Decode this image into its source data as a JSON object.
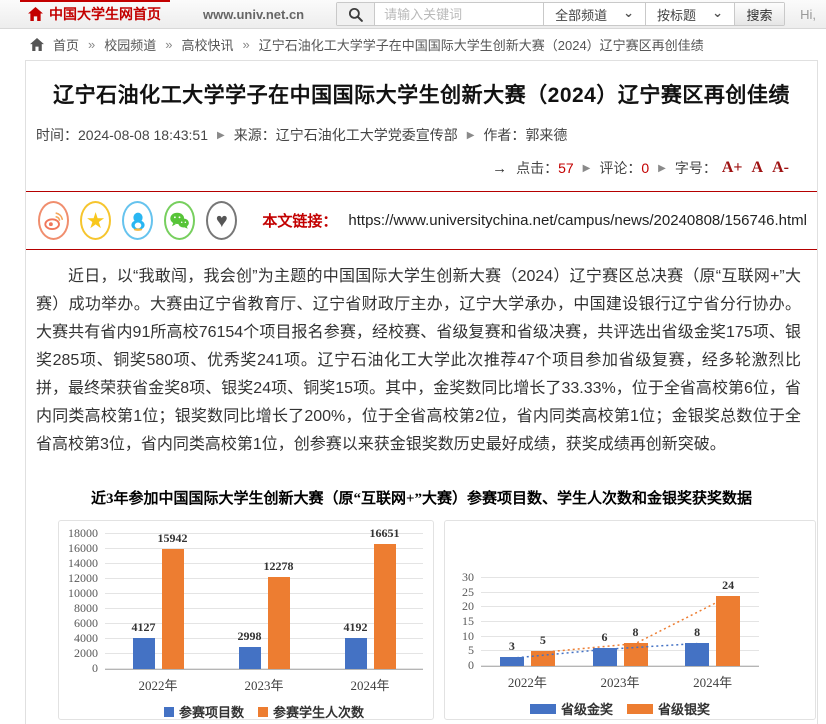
{
  "topbar": {
    "site_home": "中国大学生网首页",
    "site_url": "www.univ.net.cn",
    "search_placeholder": "请输入关键词",
    "channel_select": "全部频道",
    "field_select": "按标题",
    "search_button": "搜索",
    "greeting": "Hi,"
  },
  "breadcrumb": {
    "home": "首页",
    "separator": "»",
    "item1": "校园频道",
    "item2": "高校快讯",
    "item3": "辽宁石油化工大学学子在中国国际大学生创新大赛（2024）辽宁赛区再创佳绩"
  },
  "article": {
    "title": "辽宁石油化工大学学子在中国国际大学生创新大赛（2024）辽宁赛区再创佳绩",
    "time_label": "时间：",
    "time": "2024-08-08 18:43:51",
    "source_label": "来源：",
    "source": "辽宁石油化工大学党委宣传部",
    "author_label": "作者：",
    "author": "郭来德",
    "arrow": "→",
    "clicks_label": "点击：",
    "clicks": "57",
    "comments_label": "评论：",
    "comments": "0",
    "fontsize_label": "字号：",
    "font_plus": "A+",
    "font_normal": "A",
    "font_minus": "A-",
    "link_label": "本文链接：",
    "link_url": "https://www.universitychina.net/campus/news/20240808/156746.html",
    "paragraph": "近日，以“我敢闯，我会创”为主题的中国国际大学生创新大赛（2024）辽宁赛区总决赛（原“互联网+”大赛）成功举办。大赛由辽宁省教育厅、辽宁省财政厅主办，辽宁大学承办，中国建设银行辽宁省分行协办。大赛共有省内91所高校76154个项目报名参赛，经校赛、省级复赛和省级决赛，共评选出省级金奖175项、银奖285项、铜奖580项、优秀奖241项。辽宁石油化工大学此次推荐47个项目参加省级复赛，经多轮激烈比拼，最终荣获省金奖8项、银奖24项、铜奖15项。其中，金奖数同比增长了33.33%，位于全省高校第6位，省内同类高校第1位；银奖数同比增长了200%，位于全省高校第2位，省内同类高校第1位；金银奖总数位于全省高校第3位，省内同类高校第1位，创参赛以来获金银奖数历史最好成绩，获奖成绩再创新突破。",
    "figure_caption": "近3年参加中国国际大学生创新大赛（原“互联网+”大赛）参赛项目数、学生人次数和金银奖获奖数据"
  },
  "social_icons": [
    "weibo",
    "qzone",
    "qq",
    "wechat",
    "favorite"
  ],
  "chart_data": [
    {
      "type": "bar",
      "categories": [
        "2022年",
        "2023年",
        "2024年"
      ],
      "series": [
        {
          "name": "参赛项目数",
          "color": "#4472c4",
          "values": [
            4127,
            2998,
            4192
          ]
        },
        {
          "name": "参赛学生人次数",
          "color": "#ed7d31",
          "values": [
            15942,
            12278,
            16651
          ]
        }
      ],
      "ylim": [
        0,
        18000
      ],
      "ytick_step": 2000,
      "grid": true,
      "data_labels": true,
      "legend_position": "bottom"
    },
    {
      "type": "bar",
      "categories": [
        "2022年",
        "2023年",
        "2024年"
      ],
      "series": [
        {
          "name": "省级金奖",
          "color": "#4472c4",
          "values": [
            3,
            6,
            8
          ],
          "trendline": "dotted"
        },
        {
          "name": "省级银奖",
          "color": "#ed7d31",
          "values": [
            5,
            8,
            24
          ],
          "trendline": "dotted"
        }
      ],
      "ylim": [
        0,
        30
      ],
      "ytick_step": 5,
      "grid": true,
      "data_labels": true,
      "legend_position": "bottom"
    }
  ]
}
